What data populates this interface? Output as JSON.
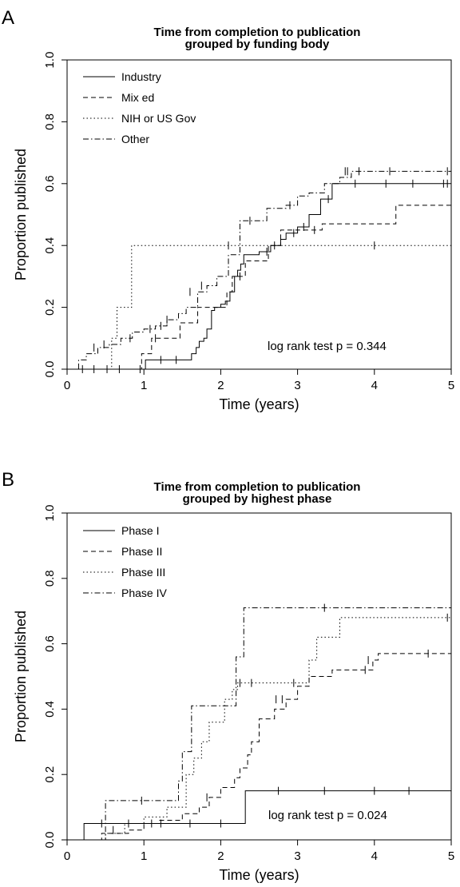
{
  "chart_data": [
    {
      "panel": "A",
      "type": "line",
      "title": [
        "Time from completion to publication",
        "grouped by funding body"
      ],
      "xlabel": "Time (years)",
      "ylabel": "Proportion published",
      "xlim": [
        0,
        5
      ],
      "ylim": [
        0,
        1
      ],
      "xticks": [
        "0",
        "1",
        "2",
        "3",
        "4",
        "5"
      ],
      "yticks": [
        "0.0",
        "0.2",
        "0.4",
        "0.6",
        "0.8",
        "1.0"
      ],
      "xtick_values": [
        0,
        1,
        2,
        3,
        4,
        5
      ],
      "ytick_values": [
        0,
        0.2,
        0.4,
        0.6,
        0.8,
        1.0
      ],
      "legend_position": "top-left",
      "annotation": "log rank test p = 0.344",
      "series": [
        {
          "name": "Industry",
          "dash": "solid",
          "x": [
            0,
            0.98,
            1.02,
            1.55,
            1.62,
            1.68,
            1.72,
            1.78,
            1.82,
            1.88,
            1.92,
            2.0,
            2.06,
            2.12,
            2.18,
            2.22,
            2.26,
            2.3,
            2.35,
            2.5,
            2.65,
            2.78,
            2.85,
            3.0,
            3.15,
            3.3,
            3.45,
            5.0
          ],
          "y": [
            0,
            0.0,
            0.03,
            0.03,
            0.05,
            0.07,
            0.09,
            0.1,
            0.13,
            0.19,
            0.2,
            0.21,
            0.22,
            0.25,
            0.3,
            0.32,
            0.34,
            0.37,
            0.37,
            0.38,
            0.4,
            0.42,
            0.44,
            0.46,
            0.5,
            0.55,
            0.6,
            0.6
          ],
          "censored": [
            [
              0.2,
              0
            ],
            [
              0.35,
              0
            ],
            [
              0.52,
              0
            ],
            [
              0.68,
              0
            ],
            [
              0.95,
              0
            ],
            [
              1.22,
              0.03
            ],
            [
              1.42,
              0.03
            ],
            [
              2.6,
              0.38
            ],
            [
              2.95,
              0.44
            ],
            [
              3.08,
              0.46
            ],
            [
              3.4,
              0.55
            ],
            [
              3.75,
              0.6
            ],
            [
              4.15,
              0.6
            ],
            [
              4.5,
              0.6
            ],
            [
              4.9,
              0.6
            ]
          ]
        },
        {
          "name": "Mix ed",
          "dash": "dashed",
          "x": [
            0,
            0.9,
            0.97,
            1.0,
            1.1,
            1.4,
            1.47,
            1.7,
            2.0,
            2.08,
            2.15,
            2.32,
            2.62,
            2.78,
            3.0,
            3.32,
            3.98,
            4.28,
            5.0
          ],
          "y": [
            0,
            0.0,
            0.05,
            0.05,
            0.1,
            0.1,
            0.15,
            0.2,
            0.2,
            0.25,
            0.3,
            0.35,
            0.4,
            0.45,
            0.45,
            0.47,
            0.47,
            0.53,
            0.6
          ],
          "censored": [
            [
              1.15,
              0.1
            ],
            [
              2.25,
              0.3
            ],
            [
              2.7,
              0.4
            ],
            [
              3.22,
              0.45
            ],
            [
              4.95,
              0.6
            ]
          ]
        },
        {
          "name": "NIH or US Gov",
          "dash": "dotted",
          "x": [
            0,
            0.55,
            0.58,
            0.65,
            0.72,
            0.78,
            0.84,
            5.0
          ],
          "y": [
            0,
            0.0,
            0.1,
            0.2,
            0.2,
            0.2,
            0.4,
            0.4
          ],
          "censored": [
            [
              2.1,
              0.4
            ],
            [
              4.0,
              0.4
            ]
          ]
        },
        {
          "name": "Other",
          "dash": "dashdot",
          "x": [
            0,
            0.15,
            0.25,
            0.4,
            0.55,
            0.7,
            0.85,
            1.0,
            1.15,
            1.3,
            1.45,
            1.55,
            1.7,
            1.82,
            1.95,
            2.1,
            2.25,
            2.45,
            2.6,
            2.85,
            3.0,
            3.15,
            3.35,
            3.55,
            3.7,
            5.0
          ],
          "y": [
            0,
            0.03,
            0.05,
            0.07,
            0.08,
            0.1,
            0.12,
            0.13,
            0.14,
            0.16,
            0.18,
            0.2,
            0.25,
            0.27,
            0.3,
            0.37,
            0.48,
            0.48,
            0.52,
            0.53,
            0.56,
            0.57,
            0.6,
            0.62,
            0.64,
            0.64
          ],
          "censored": [
            [
              0.35,
              0.07
            ],
            [
              0.48,
              0.08
            ],
            [
              0.82,
              0.1
            ],
            [
              1.08,
              0.13
            ],
            [
              1.22,
              0.14
            ],
            [
              1.3,
              0.16
            ],
            [
              1.6,
              0.25
            ],
            [
              1.75,
              0.27
            ],
            [
              2.38,
              0.48
            ],
            [
              2.9,
              0.53
            ],
            [
              3.62,
              0.64
            ],
            [
              3.65,
              0.64
            ],
            [
              3.8,
              0.64
            ],
            [
              4.2,
              0.64
            ],
            [
              4.95,
              0.64
            ]
          ]
        }
      ]
    },
    {
      "panel": "B",
      "type": "line",
      "title": [
        "Time from completion to publication",
        "grouped by highest phase"
      ],
      "xlabel": "Time (years)",
      "ylabel": "Proportion published",
      "xlim": [
        0,
        5
      ],
      "ylim": [
        0,
        1
      ],
      "xticks": [
        "0",
        "1",
        "2",
        "3",
        "4",
        "5"
      ],
      "yticks": [
        "0.0",
        "0.2",
        "0.4",
        "0.6",
        "0.8",
        "1.0"
      ],
      "xtick_values": [
        0,
        1,
        2,
        3,
        4,
        5
      ],
      "ytick_values": [
        0,
        0.2,
        0.4,
        0.6,
        0.8,
        1.0
      ],
      "legend_position": "top-left",
      "annotation": "log rank test p = 0.024",
      "series": [
        {
          "name": "Phase I",
          "dash": "solid",
          "x": [
            0,
            0.22,
            2.32,
            5.0
          ],
          "y": [
            0,
            0.05,
            0.15,
            0.15
          ],
          "censored": [
            [
              0.45,
              0.05
            ],
            [
              0.8,
              0.05
            ],
            [
              1.22,
              0.05
            ],
            [
              1.6,
              0.05
            ],
            [
              2.0,
              0.05
            ],
            [
              2.75,
              0.15
            ],
            [
              3.35,
              0.15
            ],
            [
              4.0,
              0.15
            ],
            [
              4.45,
              0.15
            ]
          ]
        },
        {
          "name": "Phase II",
          "dash": "dashed",
          "x": [
            0,
            0.45,
            0.8,
            1.0,
            1.2,
            1.5,
            1.72,
            1.85,
            2.0,
            2.18,
            2.25,
            2.35,
            2.4,
            2.5,
            2.7,
            2.85,
            3.0,
            3.15,
            3.45,
            3.98,
            4.05,
            5.0
          ],
          "y": [
            0,
            0.02,
            0.03,
            0.05,
            0.06,
            0.08,
            0.1,
            0.13,
            0.16,
            0.19,
            0.22,
            0.26,
            0.3,
            0.37,
            0.4,
            0.43,
            0.47,
            0.5,
            0.52,
            0.55,
            0.57,
            0.57
          ],
          "censored": [
            [
              0.6,
              0.03
            ],
            [
              1.1,
              0.05
            ],
            [
              1.82,
              0.13
            ],
            [
              2.72,
              0.43
            ],
            [
              2.8,
              0.43
            ],
            [
              3.88,
              0.52
            ],
            [
              3.92,
              0.55
            ],
            [
              4.7,
              0.57
            ]
          ]
        },
        {
          "name": "Phase III",
          "dash": "dotted",
          "x": [
            0,
            0.5,
            0.75,
            1.0,
            1.3,
            1.55,
            1.65,
            1.75,
            1.85,
            2.05,
            2.15,
            2.22,
            3.0,
            3.15,
            3.25,
            3.48,
            3.55,
            5.0
          ],
          "y": [
            0,
            0.02,
            0.05,
            0.07,
            0.1,
            0.2,
            0.25,
            0.3,
            0.36,
            0.43,
            0.46,
            0.48,
            0.48,
            0.55,
            0.62,
            0.62,
            0.68,
            0.68
          ],
          "censored": [
            [
              2.25,
              0.48
            ],
            [
              2.4,
              0.48
            ],
            [
              2.95,
              0.48
            ],
            [
              4.95,
              0.68
            ]
          ]
        },
        {
          "name": "Phase IV",
          "dash": "dashdot",
          "x": [
            0,
            0.5,
            1.45,
            1.5,
            1.62,
            1.78,
            2.1,
            2.2,
            2.3,
            5.0
          ],
          "y": [
            0,
            0.12,
            0.18,
            0.27,
            0.41,
            0.41,
            0.41,
            0.56,
            0.71,
            0.71
          ],
          "censored": [
            [
              0.97,
              0.12
            ],
            [
              3.35,
              0.71
            ]
          ]
        }
      ]
    }
  ]
}
